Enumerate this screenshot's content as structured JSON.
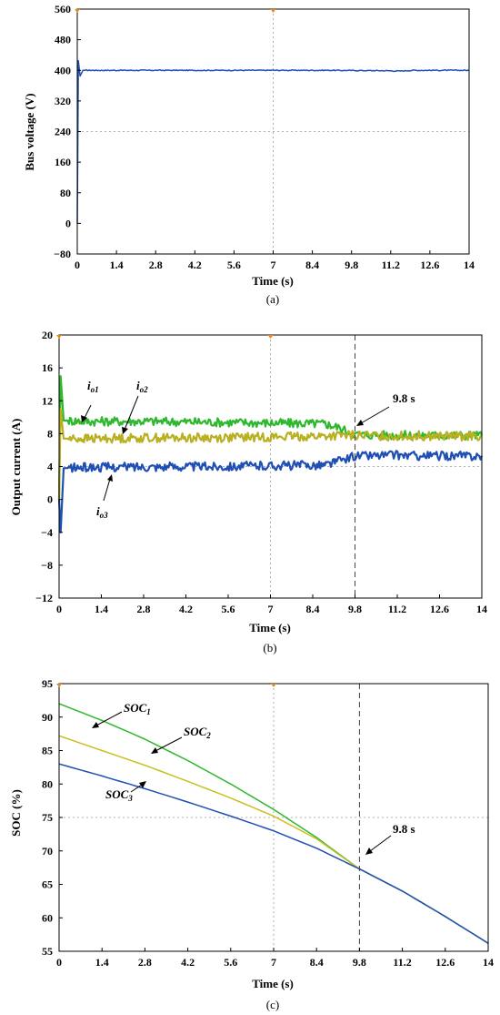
{
  "chart_data": [
    {
      "type": "line",
      "caption": "(a)",
      "xlabel": "Time (s)",
      "ylabel": "Bus voltage (V)",
      "xlim": [
        0,
        14
      ],
      "ylim": [
        -80,
        560
      ],
      "xticks": [
        "0",
        "1.4",
        "2.8",
        "4.2",
        "5.6",
        "7",
        "8.4",
        "9.8",
        "11.2",
        "12.6",
        "14"
      ],
      "yticks": [
        "560",
        "480",
        "400",
        "320",
        "240",
        "160",
        "80",
        "0",
        "−80"
      ],
      "grid": true,
      "series": [
        {
          "color": "#1f4fb4",
          "points": [
            [
              0,
              0
            ],
            [
              0.04,
              425
            ],
            [
              0.1,
              385
            ],
            [
              0.2,
              400
            ],
            [
              1,
              400
            ],
            [
              3,
              400
            ],
            [
              5,
              400
            ],
            [
              7,
              400
            ],
            [
              9,
              400
            ],
            [
              11,
              399
            ],
            [
              11.5,
              398
            ],
            [
              12,
              400
            ],
            [
              14,
              400
            ]
          ]
        }
      ],
      "annotations": []
    },
    {
      "type": "line",
      "caption": "(b)",
      "xlabel": "Time (s)",
      "ylabel": "Output current (A)",
      "xlim": [
        0,
        14
      ],
      "ylim": [
        -12,
        20
      ],
      "xticks": [
        "0",
        "1.4",
        "2.8",
        "4.2",
        "5.6",
        "7",
        "8.4",
        "9.8",
        "11.2",
        "12.6",
        "14"
      ],
      "yticks": [
        "20",
        "16",
        "12",
        "8",
        "4",
        "0",
        "−4",
        "−8",
        "−12"
      ],
      "grid": true,
      "vline": 9.8,
      "series": [
        {
          "name": "io1",
          "color": "#2db82d",
          "points": [
            [
              0,
              0
            ],
            [
              0.05,
              15
            ],
            [
              0.15,
              9.6
            ],
            [
              1,
              9.5
            ],
            [
              3,
              9.5
            ],
            [
              5,
              9.4
            ],
            [
              7,
              9.3
            ],
            [
              8.8,
              9.2
            ],
            [
              9.2,
              8.8
            ],
            [
              9.8,
              7.9
            ],
            [
              11,
              7.8
            ],
            [
              12,
              7.8
            ],
            [
              14,
              7.8
            ]
          ]
        },
        {
          "name": "io2",
          "color": "#b8b020",
          "points": [
            [
              0,
              0
            ],
            [
              0.05,
              11
            ],
            [
              0.15,
              7.4
            ],
            [
              1,
              7.4
            ],
            [
              3,
              7.5
            ],
            [
              5,
              7.5
            ],
            [
              7,
              7.6
            ],
            [
              8.8,
              7.7
            ],
            [
              9.8,
              7.8
            ],
            [
              11,
              7.7
            ],
            [
              12,
              7.7
            ],
            [
              14,
              7.7
            ]
          ]
        },
        {
          "name": "io3",
          "color": "#1f4fb4",
          "points": [
            [
              0,
              0
            ],
            [
              0.05,
              -4
            ],
            [
              0.15,
              3.8
            ],
            [
              1,
              3.9
            ],
            [
              3,
              4
            ],
            [
              5,
              4
            ],
            [
              7,
              4.1
            ],
            [
              8.8,
              4.2
            ],
            [
              9.2,
              4.6
            ],
            [
              9.8,
              5.3
            ],
            [
              11,
              5.4
            ],
            [
              12,
              5.3
            ],
            [
              14,
              5.3
            ]
          ]
        }
      ],
      "annotations": [
        {
          "text": "i",
          "sub": "o1"
        },
        {
          "text": "i",
          "sub": "o2"
        },
        {
          "text": "i",
          "sub": "o3"
        },
        {
          "text": "9.8 s",
          "sub": ""
        }
      ]
    },
    {
      "type": "line",
      "caption": "(c)",
      "xlabel": "Time (s)",
      "ylabel": "SOC (%)",
      "xlim": [
        0,
        14
      ],
      "ylim": [
        55,
        95
      ],
      "xticks": [
        "0",
        "1.4",
        "2.8",
        "4.2",
        "5.6",
        "7",
        "8.4",
        "9.8",
        "11.2",
        "12.6",
        "14"
      ],
      "yticks": [
        "95",
        "90",
        "85",
        "80",
        "75",
        "70",
        "65",
        "60",
        "55"
      ],
      "grid": true,
      "vline": 9.8,
      "series": [
        {
          "name": "SOC1",
          "color": "#2db82d",
          "points": [
            [
              0,
              92
            ],
            [
              1.4,
              89.5
            ],
            [
              2.8,
              86.7
            ],
            [
              4.2,
              83.5
            ],
            [
              5.6,
              80
            ],
            [
              7,
              76.2
            ],
            [
              8.4,
              72
            ],
            [
              9.8,
              67.3
            ],
            [
              11.2,
              64
            ],
            [
              12.6,
              60.2
            ],
            [
              14,
              56.2
            ]
          ]
        },
        {
          "name": "SOC2",
          "color": "#c8c020",
          "points": [
            [
              0,
              87.2
            ],
            [
              1.4,
              85
            ],
            [
              2.8,
              82.8
            ],
            [
              4.2,
              80.4
            ],
            [
              5.6,
              77.9
            ],
            [
              7,
              75.2
            ],
            [
              8.4,
              71.8
            ],
            [
              9.8,
              67.3
            ],
            [
              11.2,
              64
            ],
            [
              12.6,
              60.2
            ],
            [
              14,
              56.2
            ]
          ]
        },
        {
          "name": "SOC3",
          "color": "#1f4fb4",
          "points": [
            [
              0,
              83
            ],
            [
              1.4,
              81.2
            ],
            [
              2.8,
              79.3
            ],
            [
              4.2,
              77.3
            ],
            [
              5.6,
              75.2
            ],
            [
              7,
              73
            ],
            [
              8.4,
              70.4
            ],
            [
              9.8,
              67.3
            ],
            [
              11.2,
              64
            ],
            [
              12.6,
              60.2
            ],
            [
              14,
              56.2
            ]
          ]
        }
      ],
      "annotations": [
        {
          "text": "SOC",
          "sub": "1"
        },
        {
          "text": "SOC",
          "sub": "2"
        },
        {
          "text": "SOC",
          "sub": "3"
        },
        {
          "text": "9.8 s",
          "sub": ""
        }
      ]
    }
  ]
}
